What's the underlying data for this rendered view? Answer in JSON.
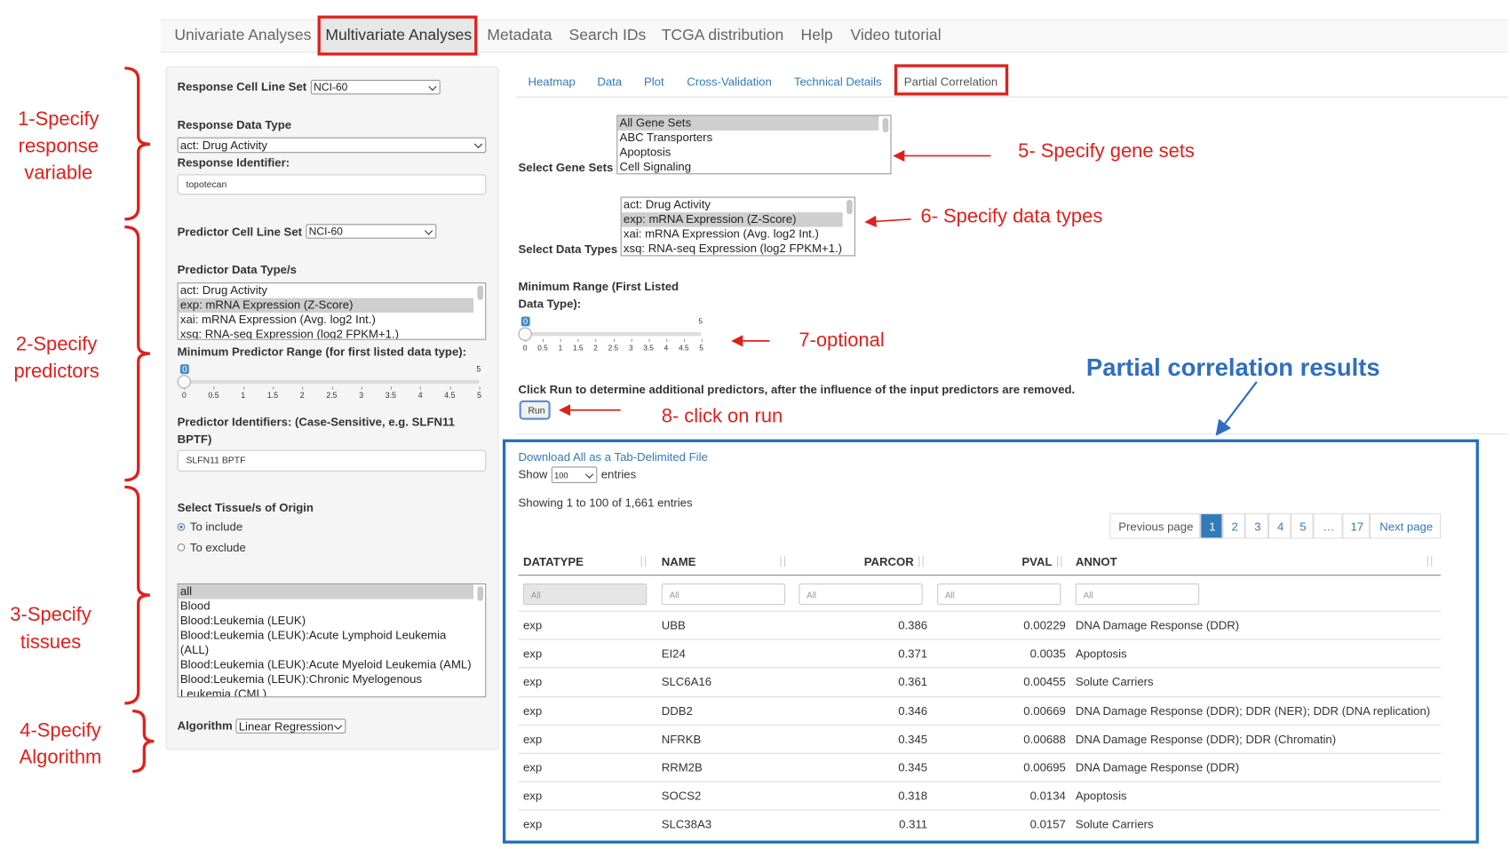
{
  "nav": {
    "tabs": [
      "Univariate Analyses",
      "Multivariate Analyses",
      "Metadata",
      "Search IDs",
      "TCGA distribution",
      "Help",
      "Video tutorial"
    ],
    "active": 1
  },
  "left": {
    "response_cell_line_set": {
      "label": "Response Cell Line Set",
      "value": "NCI-60"
    },
    "response_data_type": {
      "label": "Response Data Type",
      "value": "act: Drug Activity"
    },
    "response_identifier": {
      "label": "Response Identifier:",
      "value": "topotecan"
    },
    "predictor_cell_line_set": {
      "label": "Predictor Cell Line Set",
      "value": "NCI-60"
    },
    "predictor_data_types": {
      "label": "Predictor Data Type/s",
      "options": [
        "act: Drug Activity",
        "exp: mRNA Expression (Z-Score)",
        "xai: mRNA Expression (Avg. log2 Int.)",
        "xsq: RNA-seq Expression (log2 FPKM+1.)"
      ],
      "selected": 1
    },
    "min_predictor_range": {
      "label": "Minimum Predictor Range (for first listed data type):",
      "value": 0,
      "max": 5,
      "ticks": [
        0,
        0.5,
        1,
        1.5,
        2,
        2.5,
        3,
        3.5,
        4,
        4.5,
        5
      ]
    },
    "predictor_identifiers": {
      "label": "Predictor Identifiers: (Case-Sensitive, e.g. SLFN11 BPTF)",
      "value": "SLFN11 BPTF"
    },
    "tissues": {
      "label": "Select Tissue/s of Origin",
      "modes": [
        "To include",
        "To exclude"
      ],
      "checked": 0,
      "options": [
        "all",
        "Blood",
        "Blood:Leukemia (LEUK)",
        "Blood:Leukemia (LEUK):Acute Lymphoid Leukemia (ALL)",
        "Blood:Leukemia (LEUK):Acute Myeloid Leukemia (AML)",
        "Blood:Leukemia (LEUK):Chronic Myelogenous Leukemia (CML)"
      ],
      "selected": 0
    },
    "algorithm": {
      "label": "Algorithm",
      "value": "Linear Regression"
    }
  },
  "annotations": [
    [
      "1-Specify",
      "response",
      "variable"
    ],
    [
      "2-Specify",
      "predictors"
    ],
    [
      "3-Specify",
      "tissues"
    ],
    [
      "4-Specify",
      "Algorithm"
    ]
  ],
  "right": {
    "sub_tabs": {
      "tabs": [
        "Heatmap",
        "Data",
        "Plot",
        "Cross-Validation",
        "Technical Details",
        "Partial Correlation"
      ],
      "active": 5
    },
    "gene_sets": {
      "label": "Select Gene Sets",
      "options": [
        "All Gene Sets",
        "ABC Transporters",
        "Apoptosis",
        "Cell Signaling"
      ],
      "selected": 0
    },
    "data_types": {
      "label": "Select Data Types",
      "options": [
        "act: Drug Activity",
        "exp: mRNA Expression (Z-Score)",
        "xai: mRNA Expression (Avg. log2 Int.)",
        "xsq: RNA-seq Expression (log2 FPKM+1.)"
      ],
      "selected": 1
    },
    "min_range": {
      "label": [
        "Minimum Range (First Listed",
        "Data Type):"
      ],
      "value": 0,
      "max": 5,
      "ticks": [
        0,
        0.5,
        1,
        1.5,
        2,
        2.5,
        3,
        3.5,
        4,
        4.5,
        5
      ]
    },
    "run_hint": "Click Run to determine additional predictors, after the influence of the input predictors are removed.",
    "run_button": "Run",
    "callouts": [
      "5- Specify gene sets",
      "6- Specify data types",
      "7-optional",
      "8- click on run"
    ],
    "results_heading": "Partial correlation results"
  },
  "results": {
    "download": "Download All as a Tab-Delimited File",
    "show": "Show",
    "page_length": "100",
    "entries": "entries",
    "info": "Showing 1 to 100 of 1,661 entries",
    "pagination": {
      "previous": "Previous page",
      "pages": [
        "1",
        "2",
        "3",
        "4",
        "5",
        "…",
        "17"
      ],
      "current": 0,
      "next": "Next page"
    },
    "columns": [
      "DATATYPE",
      "NAME",
      "PARCOR",
      "PVAL",
      "ANNOT"
    ],
    "filters": [
      "All",
      "All",
      "All",
      "All",
      "All"
    ],
    "rows": [
      [
        "exp",
        "UBB",
        0.386,
        0.00229,
        "DNA Damage Response (DDR)"
      ],
      [
        "exp",
        "EI24",
        0.371,
        0.0035,
        "Apoptosis"
      ],
      [
        "exp",
        "SLC6A16",
        0.361,
        0.00455,
        "Solute Carriers"
      ],
      [
        "exp",
        "DDB2",
        0.346,
        0.00669,
        "DNA Damage Response (DDR); DDR (NER); DDR (DNA replication)"
      ],
      [
        "exp",
        "NFRKB",
        0.345,
        0.00688,
        "DNA Damage Response (DDR); DDR (Chromatin)"
      ],
      [
        "exp",
        "RRM2B",
        0.345,
        0.00695,
        "DNA Damage Response (DDR)"
      ],
      [
        "exp",
        "SOCS2",
        0.318,
        0.0134,
        "Apoptosis"
      ],
      [
        "exp",
        "SLC38A3",
        0.311,
        0.0157,
        "Solute Carriers"
      ]
    ]
  }
}
